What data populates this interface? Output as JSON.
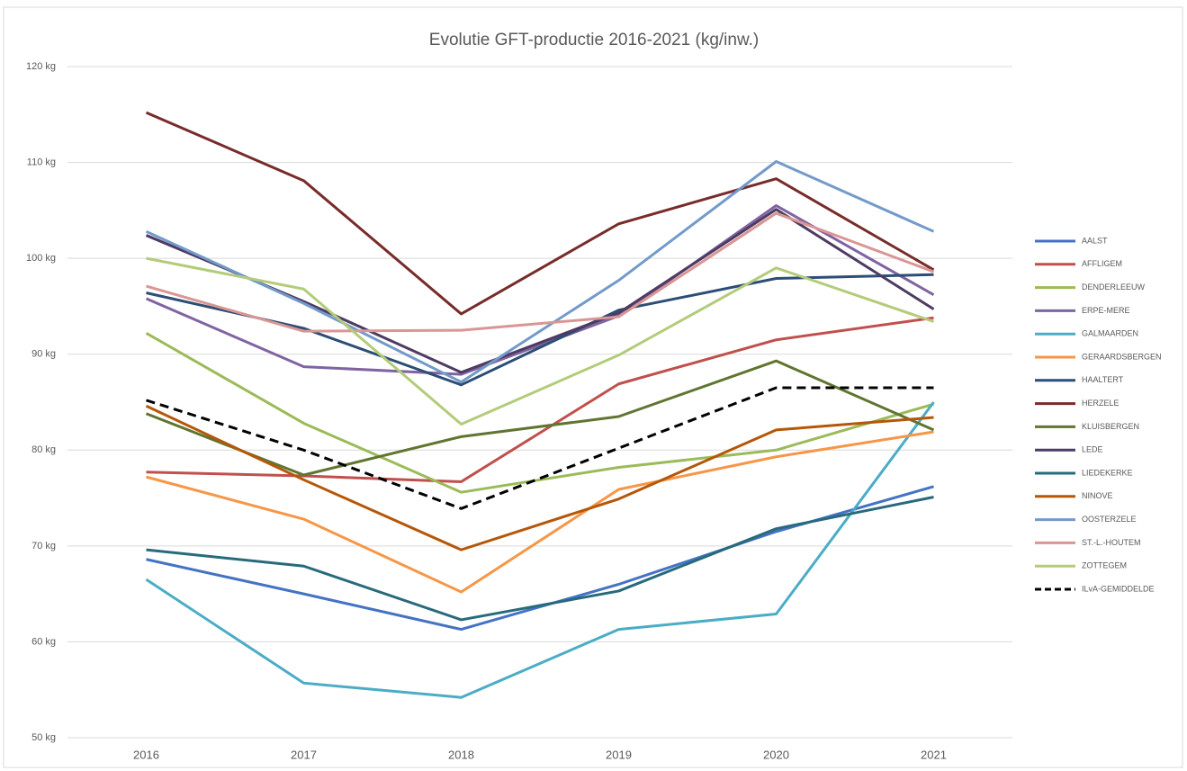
{
  "chart_data": {
    "type": "line",
    "title": "Evolutie GFT-productie 2016-2021 (kg/inw.)",
    "categories": [
      "2016",
      "2017",
      "2018",
      "2019",
      "2020",
      "2021"
    ],
    "ylim": [
      50,
      120
    ],
    "yticks": [
      {
        "value": 50,
        "label": "50 kg"
      },
      {
        "value": 60,
        "label": "60 kg"
      },
      {
        "value": 70,
        "label": "70 kg"
      },
      {
        "value": 80,
        "label": "80 kg"
      },
      {
        "value": 90,
        "label": "90 kg"
      },
      {
        "value": 100,
        "label": "100 kg"
      },
      {
        "value": 110,
        "label": "110 kg"
      },
      {
        "value": 120,
        "label": "120 kg"
      }
    ],
    "grid": true,
    "legend": "right",
    "series": [
      {
        "name": "AALST",
        "color": "#4472c4",
        "values": [
          68.6,
          65,
          61.3,
          66,
          71.5,
          76.2
        ]
      },
      {
        "name": "AFFLIGEM",
        "color": "#c0504d",
        "values": [
          77.7,
          77.3,
          76.7,
          86.9,
          91.5,
          93.8
        ]
      },
      {
        "name": "DENDERLEEUW",
        "color": "#9bbb59",
        "values": [
          92.2,
          82.8,
          75.6,
          78.2,
          80,
          84.8
        ]
      },
      {
        "name": "ERPE-MERE",
        "color": "#8064a2",
        "values": [
          95.8,
          88.7,
          87.9,
          94,
          105.5,
          96.2
        ]
      },
      {
        "name": "GALMAARDEN",
        "color": "#4bacc6",
        "values": [
          66.5,
          55.7,
          54.2,
          61.3,
          62.9,
          85
        ]
      },
      {
        "name": "GERAARDSBERGEN",
        "color": "#f79646",
        "values": [
          77.2,
          72.8,
          65.2,
          75.9,
          79.3,
          81.9
        ]
      },
      {
        "name": "HAALTERT",
        "color": "#2c4d75",
        "values": [
          96.4,
          92.7,
          86.8,
          94.6,
          97.9,
          98.3
        ]
      },
      {
        "name": "HERZELE",
        "color": "#772c2a",
        "values": [
          115.2,
          108.1,
          94.2,
          103.6,
          108.3,
          98.8
        ]
      },
      {
        "name": "KLUISBERGEN",
        "color": "#5f7530",
        "values": [
          83.8,
          77.4,
          81.4,
          83.5,
          89.3,
          82.1
        ]
      },
      {
        "name": "LEDE",
        "color": "#4d3b62",
        "values": [
          102.4,
          95.5,
          88.1,
          94.3,
          105.1,
          94.7
        ]
      },
      {
        "name": "LIEDEKERKE",
        "color": "#276a7c",
        "values": [
          69.6,
          67.9,
          62.3,
          65.3,
          71.8,
          75.1
        ]
      },
      {
        "name": "NINOVE",
        "color": "#b65708",
        "values": [
          84.6,
          76.9,
          69.6,
          74.9,
          82.1,
          83.4
        ]
      },
      {
        "name": "OOSTERZELE",
        "color": "#729aca",
        "values": [
          102.8,
          95.3,
          87.1,
          97.7,
          110.1,
          102.8
        ]
      },
      {
        "name": "ST.-L.-HOUTEM",
        "color": "#d99694",
        "values": [
          97.1,
          92.4,
          92.5,
          93.9,
          104.7,
          98.6
        ]
      },
      {
        "name": "ZOTTEGEM",
        "color": "#b3cc7a",
        "values": [
          100,
          96.8,
          82.7,
          89.9,
          99,
          93.4
        ]
      },
      {
        "name": "ILvA-GEMIDDELDE",
        "color": "#000000",
        "dash": true,
        "values": [
          85.2,
          80,
          73.9,
          80.2,
          86.5,
          86.5
        ]
      }
    ]
  }
}
